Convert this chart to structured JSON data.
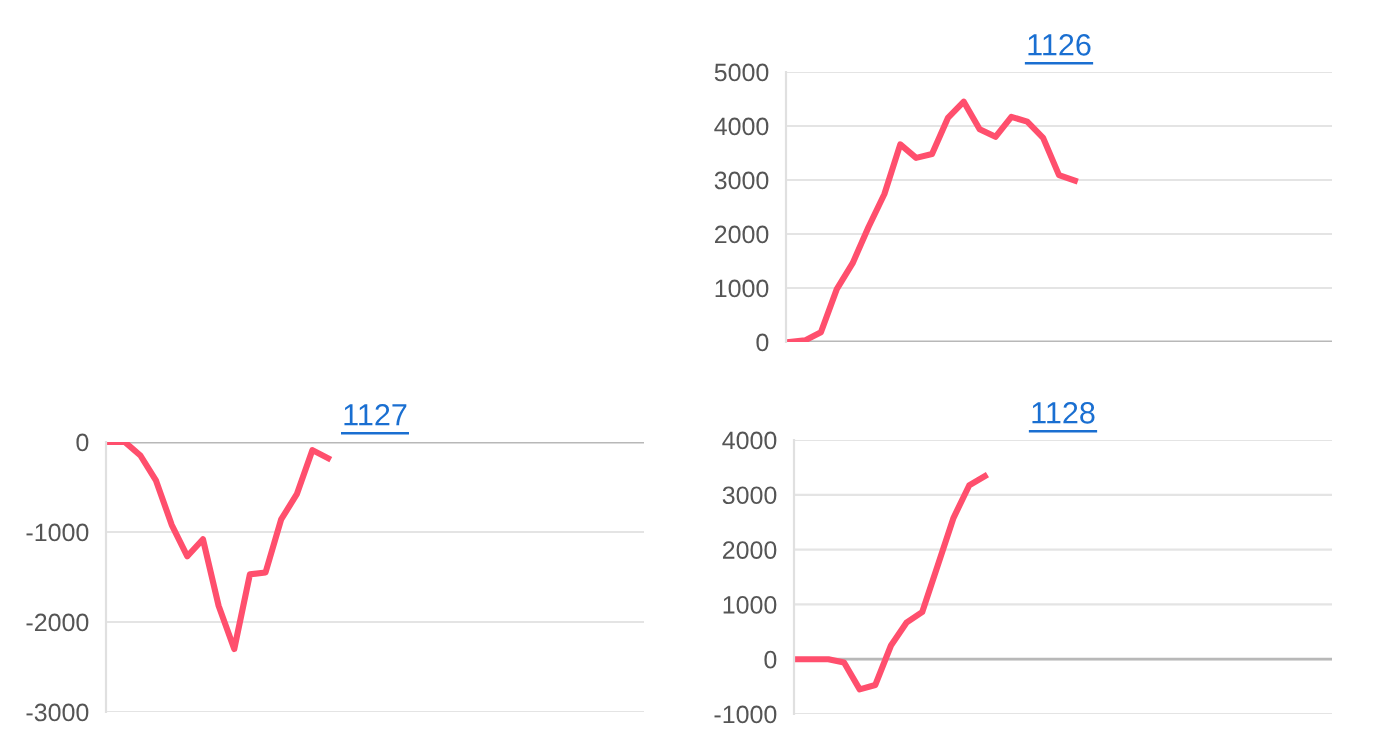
{
  "chart_data": [
    {
      "type": "line",
      "title": "1126",
      "categories": [
        null,
        null,
        null,
        null,
        null,
        null,
        null,
        null,
        null,
        null,
        null,
        null,
        null,
        null,
        null,
        null,
        null,
        null,
        null,
        null,
        null,
        null,
        null,
        null,
        null,
        null,
        null,
        null,
        null,
        null,
        null,
        null,
        null,
        null,
        null
      ],
      "series": [
        {
          "color": "#ff4f6d",
          "values": [
            0,
            30,
            180,
            980,
            1460,
            2130,
            2740,
            3660,
            3410,
            3480,
            4150,
            4450,
            3940,
            3800,
            4170,
            4080,
            3780,
            3090,
            2990,
            null,
            null,
            null,
            null,
            null,
            null,
            null,
            null,
            null,
            null,
            null,
            null,
            null,
            null,
            null,
            null
          ]
        }
      ],
      "ylim": [
        0,
        5000
      ],
      "yticks": [
        0,
        1000,
        2000,
        3000,
        4000,
        5000
      ],
      "grid": "y",
      "tick_labels": "y",
      "legend": false
    },
    {
      "type": "line",
      "title": "1127",
      "categories": [
        null,
        null,
        null,
        null,
        null,
        null,
        null,
        null,
        null,
        null,
        null,
        null,
        null,
        null,
        null,
        null,
        null,
        null,
        null,
        null,
        null,
        null,
        null,
        null,
        null,
        null,
        null,
        null,
        null,
        null,
        null,
        null,
        null,
        null,
        null
      ],
      "series": [
        {
          "color": "#ff4f6d",
          "values": [
            0,
            0,
            -150,
            -430,
            -920,
            -1270,
            -1080,
            -1820,
            -2300,
            -1470,
            -1450,
            -860,
            -580,
            -90,
            -180,
            null,
            null,
            null,
            null,
            null,
            null,
            null,
            null,
            null,
            null,
            null,
            null,
            null,
            null,
            null,
            null,
            null,
            null,
            null,
            null
          ]
        }
      ],
      "ylim": [
        -3000,
        0
      ],
      "yticks": [
        -3000,
        -2000,
        -1000,
        0
      ],
      "grid": "y",
      "tick_labels": "y",
      "legend": false
    },
    {
      "type": "line",
      "title": "1128",
      "categories": [
        null,
        null,
        null,
        null,
        null,
        null,
        null,
        null,
        null,
        null,
        null,
        null,
        null,
        null,
        null,
        null,
        null,
        null,
        null,
        null,
        null,
        null,
        null,
        null,
        null,
        null,
        null,
        null,
        null,
        null,
        null,
        null,
        null,
        null,
        null
      ],
      "series": [
        {
          "color": "#ff4f6d",
          "values": [
            0,
            0,
            0,
            -60,
            -550,
            -470,
            250,
            670,
            860,
            1720,
            2580,
            3170,
            3340,
            null,
            null,
            null,
            null,
            null,
            null,
            null,
            null,
            null,
            null,
            null,
            null,
            null,
            null,
            null,
            null,
            null,
            null,
            null,
            null,
            null,
            null
          ]
        }
      ],
      "ylim": [
        -1000,
        4000
      ],
      "yticks": [
        -1000,
        0,
        1000,
        2000,
        3000,
        4000
      ],
      "grid": "y",
      "tick_labels": "y",
      "legend": false
    }
  ]
}
